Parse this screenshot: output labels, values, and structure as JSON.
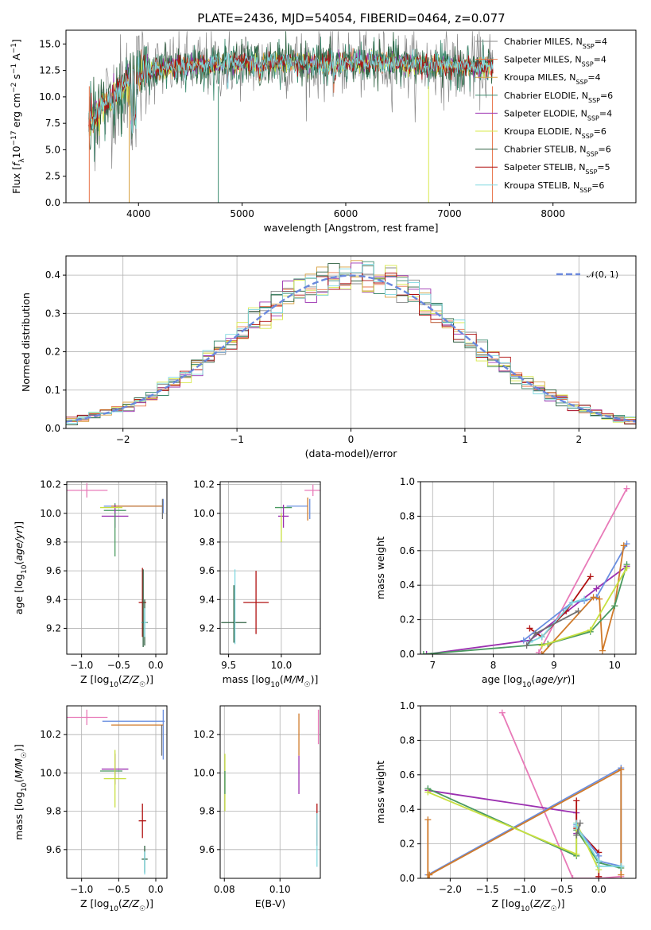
{
  "figure": {
    "title": "PLATE=2436, MJD=54054, FIBERID=0464, z=0.077"
  },
  "colors": {
    "chabrier_miles": "#888888",
    "salpeter_miles": "#e8744a",
    "kroupa_miles": "#d8a040",
    "chabrier_elodie": "#3b8a6e",
    "salpeter_elodie": "#9b30b0",
    "kroupa_elodie": "#d8e84a",
    "chabrier_stelib": "#2e6040",
    "salpeter_stelib": "#b01010",
    "kroupa_stelib": "#80d8e0",
    "normal": "#6a88dd",
    "grid": "#b0b0b0",
    "pink": "#e87ab8",
    "blue": "#6a8fe0",
    "orange": "#d07a2a",
    "purple": "#9b30b0",
    "green": "#4a9a60",
    "yellowgreen": "#c8e040",
    "red": "#b01010",
    "gray": "#707070",
    "cyan": "#80d8e0"
  },
  "chart_data": [
    {
      "type": "line",
      "id": "spectrum",
      "title": "PLATE=2436, MJD=54054, FIBERID=0464, z=0.077",
      "xlabel": "wavelength [Angstrom, rest frame]",
      "ylabel": "Flux [f_λ10^-17 erg cm^-2 s^-1 A^-1]",
      "xlim": [
        3300,
        8800
      ],
      "ylim": [
        0,
        16.3
      ],
      "xticks": [
        4000,
        5000,
        6000,
        7000,
        8000
      ],
      "xticklabels": [
        "4000",
        "5000",
        "6000",
        "7000",
        "8000"
      ],
      "yticks": [
        0,
        2.5,
        5,
        7.5,
        10,
        12.5,
        15
      ],
      "yticklabels": [
        "0.0",
        "2.5",
        "5.0",
        "7.5",
        "10.0",
        "12.5",
        "15.0"
      ],
      "grid": false,
      "legend_position": "top-right",
      "series": [
        {
          "name": "Chabrier MILES, N_SSP=4",
          "label_main": "Chabrier MILES, N",
          "label_sub": "SSP",
          "label_tail": "=4",
          "color": "#888888"
        },
        {
          "name": "Salpeter MILES, N_SSP=4",
          "label_main": "Salpeter MILES, N",
          "label_sub": "SSP",
          "label_tail": "=4",
          "color": "#e8744a"
        },
        {
          "name": "Kroupa MILES, N_SSP=4",
          "label_main": "Kroupa MILES, N",
          "label_sub": "SSP",
          "label_tail": "=4",
          "color": "#d8a040"
        },
        {
          "name": "Chabrier ELODIE, N_SSP=6",
          "label_main": "Chabrier ELODIE, N",
          "label_sub": "SSP",
          "label_tail": "=6",
          "color": "#3b8a6e"
        },
        {
          "name": "Salpeter ELODIE, N_SSP=4",
          "label_main": "Salpeter ELODIE, N",
          "label_sub": "SSP",
          "label_tail": "=4",
          "color": "#9b30b0"
        },
        {
          "name": "Kroupa ELODIE, N_SSP=6",
          "label_main": "Kroupa ELODIE, N",
          "label_sub": "SSP",
          "label_tail": "=6",
          "color": "#d8e84a"
        },
        {
          "name": "Chabrier STELIB, N_SSP=6",
          "label_main": "Chabrier STELIB, N",
          "label_sub": "SSP",
          "label_tail": "=6",
          "color": "#2e6040"
        },
        {
          "name": "Salpeter STELIB, N_SSP=5",
          "label_main": "Salpeter STELIB, N",
          "label_sub": "SSP",
          "label_tail": "=5",
          "color": "#b01010"
        },
        {
          "name": "Kroupa STELIB, N_SSP=6",
          "label_main": "Kroupa STELIB, N",
          "label_sub": "SSP",
          "label_tail": "=6",
          "color": "#80d8e0"
        }
      ],
      "continuum": {
        "x": [
          3520,
          3600,
          3700,
          3800,
          3900,
          4000,
          4100,
          4300,
          4500,
          4700,
          4900,
          5200,
          5500,
          5800,
          6100,
          6400,
          6700,
          7000,
          7200,
          7400
        ],
        "y": [
          7.5,
          8.5,
          9.5,
          10.5,
          11.3,
          12.0,
          12.5,
          12.8,
          13.0,
          13.0,
          13.2,
          13.3,
          13.3,
          13.2,
          13.2,
          13.2,
          13.0,
          12.9,
          12.8,
          12.8
        ]
      }
    },
    {
      "type": "histogram",
      "id": "residuals",
      "xlabel": "(data-model)/error",
      "ylabel": "Normed distribution",
      "xlim": [
        -2.5,
        2.5
      ],
      "ylim": [
        0,
        0.45
      ],
      "xticks": [
        -2,
        -1,
        0,
        1,
        2
      ],
      "xticklabels": [
        "−2",
        "−1",
        "0",
        "1",
        "2"
      ],
      "yticks": [
        0,
        0.1,
        0.2,
        0.3,
        0.4
      ],
      "yticklabels": [
        "0.0",
        "0.1",
        "0.2",
        "0.3",
        "0.4"
      ],
      "grid": true,
      "legend_position": "top-right",
      "legend_label": "𝒩(0, 1)",
      "bin_width": 0.1,
      "bin_start": -2.5,
      "reference_curve": {
        "name": "N(0,1)",
        "type": "normal",
        "mean": 0,
        "sigma": 1
      },
      "series_colors": [
        "#888888",
        "#e8744a",
        "#d8a040",
        "#3b8a6e",
        "#9b30b0",
        "#d8e84a",
        "#2e6040",
        "#b01010",
        "#80d8e0"
      ]
    },
    {
      "type": "errorbar",
      "id": "age_vs_Z",
      "xlabel": "Z [log10(Z/Z☉)]",
      "ylabel": "age  [log10(age/yr)]",
      "xlim": [
        -1.2,
        0.15
      ],
      "ylim": [
        9.02,
        10.22
      ],
      "xticks": [
        -1.0,
        -0.5,
        0.0
      ],
      "xticklabels": [
        "−1.0",
        "−0.5",
        "0.0"
      ],
      "yticks": [
        9.2,
        9.4,
        9.6,
        9.8,
        10.0,
        10.2
      ],
      "yticklabels": [
        "9.2",
        "9.4",
        "9.6",
        "9.8",
        "10.0",
        "10.2"
      ],
      "grid": true,
      "points": [
        {
          "x": -0.93,
          "y": 10.16,
          "xerr": 0.28,
          "yerr": 0.05,
          "color": "#e87ab8"
        },
        {
          "x": -0.3,
          "y": 10.05,
          "xerr": 0.4,
          "yerr": 0.0,
          "color": "#6a8fe0"
        },
        {
          "x": 0.1,
          "y": 10.05,
          "xerr": 0.0,
          "yerr": 0.05,
          "color": "#6a8fe0"
        },
        {
          "x": -0.25,
          "y": 10.05,
          "xerr": 0.35,
          "yerr": 0.0,
          "color": "#d07a2a"
        },
        {
          "x": 0.09,
          "y": 10.03,
          "xerr": 0.0,
          "yerr": 0.07,
          "color": "#707070"
        },
        {
          "x": -0.55,
          "y": 10.02,
          "xerr": 0.15,
          "yerr": 0.05,
          "color": "#4a9a60"
        },
        {
          "x": -0.55,
          "y": 9.98,
          "xerr": 0.18,
          "yerr": 0.08,
          "color": "#9b30b0"
        },
        {
          "x": -0.6,
          "y": 10.04,
          "xerr": 0.15,
          "yerr": 0.0,
          "color": "#c8e040"
        },
        {
          "x": -0.55,
          "y": 9.85,
          "xerr": 0.0,
          "yerr": 0.15,
          "color": "#4a9a60"
        },
        {
          "x": -0.18,
          "y": 9.38,
          "xerr": 0.05,
          "yerr": 0.24,
          "color": "#b01010"
        },
        {
          "x": -0.15,
          "y": 9.24,
          "xerr": 0.04,
          "yerr": 0.16,
          "color": "#2e6040"
        },
        {
          "x": -0.15,
          "y": 9.24,
          "xerr": 0.03,
          "yerr": 0.1,
          "color": "#80d8e0"
        },
        {
          "x": -0.17,
          "y": 9.34,
          "xerr": 0.0,
          "yerr": 0.27,
          "color": "#2e6040"
        }
      ]
    },
    {
      "type": "errorbar",
      "id": "age_vs_mass",
      "xlabel": "mass [log10(M/M☉)]",
      "ylabel": "",
      "xlim": [
        9.42,
        10.37
      ],
      "ylim": [
        9.02,
        10.22
      ],
      "xticks": [
        9.5,
        10.0
      ],
      "xticklabels": [
        "9.5",
        "10.0"
      ],
      "yticks": [
        9.2,
        9.4,
        9.6,
        9.8,
        10.0,
        10.2
      ],
      "yticklabels": [
        "9.2",
        "9.4",
        "9.6",
        "9.8",
        "10.0",
        "10.2"
      ],
      "grid": true,
      "points": [
        {
          "x": 10.3,
          "y": 10.16,
          "xerr": 0.08,
          "yerr": 0.04,
          "color": "#e87ab8"
        },
        {
          "x": 10.15,
          "y": 10.05,
          "xerr": 0.1,
          "yerr": 0.0,
          "color": "#6a8fe0"
        },
        {
          "x": 10.27,
          "y": 10.03,
          "xerr": 0.0,
          "yerr": 0.07,
          "color": "#6a8fe0"
        },
        {
          "x": 10.25,
          "y": 10.03,
          "xerr": 0.0,
          "yerr": 0.08,
          "color": "#d07a2a"
        },
        {
          "x": 10.02,
          "y": 10.04,
          "xerr": 0.08,
          "yerr": 0.0,
          "color": "#4a9a60"
        },
        {
          "x": 10.02,
          "y": 9.98,
          "xerr": 0.05,
          "yerr": 0.08,
          "color": "#9b30b0"
        },
        {
          "x": 10.0,
          "y": 9.9,
          "xerr": 0.0,
          "yerr": 0.1,
          "color": "#c8e040"
        },
        {
          "x": 9.76,
          "y": 9.38,
          "xerr": 0.12,
          "yerr": 0.22,
          "color": "#b01010"
        },
        {
          "x": 9.55,
          "y": 9.24,
          "xerr": 0.12,
          "yerr": 0.0,
          "color": "#2e6040"
        },
        {
          "x": 9.56,
          "y": 9.35,
          "xerr": 0.0,
          "yerr": 0.26,
          "color": "#80d8e0"
        },
        {
          "x": 9.55,
          "y": 9.3,
          "xerr": 0.0,
          "yerr": 0.2,
          "color": "#2e6040"
        }
      ]
    },
    {
      "type": "line",
      "id": "massweight_vs_age",
      "xlabel": "age  [log10(age/yr)]",
      "ylabel": "mass weight",
      "xlim": [
        6.8,
        10.35
      ],
      "ylim": [
        0,
        1.0
      ],
      "xticks": [
        7,
        8,
        9,
        10
      ],
      "xticklabels": [
        "7",
        "8",
        "9",
        "10"
      ],
      "yticks": [
        0,
        0.2,
        0.4,
        0.6,
        0.8,
        1.0
      ],
      "yticklabels": [
        "0.0",
        "0.2",
        "0.4",
        "0.6",
        "0.8",
        "1.0"
      ],
      "grid": true,
      "series": [
        {
          "color": "#e87ab8",
          "x": [
            8.75,
            10.2
          ],
          "y": [
            0.01,
            0.96
          ]
        },
        {
          "color": "#9b30b0",
          "x": [
            6.9,
            8.6,
            9.7,
            10.2
          ],
          "y": [
            0.0,
            0.08,
            0.38,
            0.51
          ]
        },
        {
          "color": "#b01010",
          "x": [
            8.6,
            8.8,
            9.2,
            9.6
          ],
          "y": [
            0.15,
            0.1,
            0.25,
            0.45
          ]
        },
        {
          "color": "#6a8fe0",
          "x": [
            8.5,
            9.3,
            9.5,
            9.7,
            10.2
          ],
          "y": [
            0.08,
            0.3,
            0.31,
            0.33,
            0.64
          ]
        },
        {
          "color": "#d07a2a",
          "x": [
            8.8,
            9.65,
            9.75,
            9.8,
            10.0,
            10.15
          ],
          "y": [
            0.0,
            0.33,
            0.32,
            0.02,
            0.28,
            0.63
          ]
        },
        {
          "color": "#4a9a60",
          "x": [
            6.85,
            8.9,
            9.6,
            10.0,
            10.2
          ],
          "y": [
            0.0,
            0.06,
            0.13,
            0.28,
            0.52
          ]
        },
        {
          "color": "#c8e040",
          "x": [
            8.8,
            9.6,
            10.2
          ],
          "y": [
            0.05,
            0.14,
            0.5
          ]
        },
        {
          "color": "#80d8e0",
          "x": [
            8.6,
            8.8,
            9.3,
            9.5
          ],
          "y": [
            0.07,
            0.1,
            0.3,
            0.32
          ]
        },
        {
          "color": "#707070",
          "x": [
            8.55,
            8.7,
            9.4
          ],
          "y": [
            0.05,
            0.12,
            0.25
          ]
        }
      ]
    },
    {
      "type": "errorbar",
      "id": "mass_vs_Z",
      "xlabel": "Z [log10(Z/Z☉)]",
      "ylabel": "mass [log10(M/M☉)]",
      "xlim": [
        -1.2,
        0.15
      ],
      "ylim": [
        9.45,
        10.35
      ],
      "xticks": [
        -1.0,
        -0.5,
        0.0
      ],
      "xticklabels": [
        "−1.0",
        "−0.5",
        "0.0"
      ],
      "yticks": [
        9.6,
        9.8,
        10.0,
        10.2
      ],
      "yticklabels": [
        "9.6",
        "9.8",
        "10.0",
        "10.2"
      ],
      "grid": true,
      "points": [
        {
          "x": -0.93,
          "y": 10.29,
          "xerr": 0.28,
          "yerr": 0.04,
          "color": "#e87ab8"
        },
        {
          "x": -0.3,
          "y": 10.27,
          "xerr": 0.42,
          "yerr": 0.0,
          "color": "#6a8fe0"
        },
        {
          "x": 0.1,
          "y": 10.2,
          "xerr": 0.0,
          "yerr": 0.13,
          "color": "#6a8fe0"
        },
        {
          "x": -0.25,
          "y": 10.25,
          "xerr": 0.35,
          "yerr": 0.0,
          "color": "#d07a2a"
        },
        {
          "x": 0.08,
          "y": 10.17,
          "xerr": 0.0,
          "yerr": 0.08,
          "color": "#707070"
        },
        {
          "x": -0.55,
          "y": 10.02,
          "xerr": 0.18,
          "yerr": 0.08,
          "color": "#9b30b0"
        },
        {
          "x": -0.6,
          "y": 10.01,
          "xerr": 0.15,
          "yerr": 0.0,
          "color": "#4a9a60"
        },
        {
          "x": -0.55,
          "y": 9.97,
          "xerr": 0.15,
          "yerr": 0.15,
          "color": "#c8e040"
        },
        {
          "x": -0.18,
          "y": 9.75,
          "xerr": 0.05,
          "yerr": 0.09,
          "color": "#b01010"
        },
        {
          "x": -0.15,
          "y": 9.55,
          "xerr": 0.04,
          "yerr": 0.07,
          "color": "#2e6040"
        },
        {
          "x": -0.15,
          "y": 9.53,
          "xerr": 0.0,
          "yerr": 0.06,
          "color": "#80d8e0"
        }
      ]
    },
    {
      "type": "errorbar",
      "id": "mass_vs_EBV",
      "xlabel": "E(B-V)",
      "ylabel": "",
      "xlim": [
        0.0785,
        0.1145
      ],
      "ylim": [
        9.45,
        10.35
      ],
      "xticks": [
        0.08,
        0.1
      ],
      "xticklabels": [
        "0.08",
        "0.10"
      ],
      "yticks": [
        9.6,
        9.8,
        10.0,
        10.2
      ],
      "yticklabels": [
        "9.6",
        "9.8",
        "10.0",
        "10.2"
      ],
      "grid": true,
      "points": [
        {
          "x": 0.1138,
          "y": 10.24,
          "xerr": 0.0,
          "yerr": 0.09,
          "color": "#e87ab8"
        },
        {
          "x": 0.1068,
          "y": 10.2,
          "xerr": 0.0,
          "yerr": 0.11,
          "color": "#d07a2a"
        },
        {
          "x": 0.1068,
          "y": 9.99,
          "xerr": 0.0,
          "yerr": 0.1,
          "color": "#9b30b0"
        },
        {
          "x": 0.0802,
          "y": 9.95,
          "xerr": 0.0,
          "yerr": 0.15,
          "color": "#c8e040"
        },
        {
          "x": 0.0802,
          "y": 9.95,
          "xerr": 0.0,
          "yerr": 0.06,
          "color": "#4a9a60"
        },
        {
          "x": 0.1133,
          "y": 9.73,
          "xerr": 0.0,
          "yerr": 0.11,
          "color": "#b01010"
        },
        {
          "x": 0.1133,
          "y": 9.65,
          "xerr": 0.0,
          "yerr": 0.14,
          "color": "#80d8e0"
        }
      ]
    },
    {
      "type": "line",
      "id": "massweight_vs_Z",
      "xlabel": "Z [log10(Z/Z☉)]",
      "ylabel": "mass weight",
      "xlim": [
        -2.4,
        0.5
      ],
      "ylim": [
        0,
        1.0
      ],
      "xticks": [
        -2.0,
        -1.5,
        -1.0,
        -0.5,
        0.0
      ],
      "xticklabels": [
        "−2.0",
        "−1.5",
        "−1.0",
        "−0.5",
        "0.0"
      ],
      "yticks": [
        0,
        0.2,
        0.4,
        0.6,
        0.8,
        1.0
      ],
      "yticklabels": [
        "0.0",
        "0.2",
        "0.4",
        "0.6",
        "0.8",
        "1.0"
      ],
      "grid": true,
      "series": [
        {
          "color": "#e87ab8",
          "x": [
            -1.3,
            -0.35,
            0.0,
            0.3
          ],
          "y": [
            0.96,
            0.0,
            0.0,
            0.01
          ]
        },
        {
          "color": "#9b30b0",
          "x": [
            -2.3,
            -0.3,
            -0.3
          ],
          "y": [
            0.51,
            0.38,
            0.26
          ]
        },
        {
          "color": "#b01010",
          "x": [
            -0.3,
            -0.3,
            0.0,
            0.0
          ],
          "y": [
            0.45,
            0.29,
            0.15,
            0.01
          ]
        },
        {
          "color": "#6a8fe0",
          "x": [
            -2.3,
            0.3,
            0.3,
            0.0,
            0.0,
            -0.3,
            -0.3
          ],
          "y": [
            0.02,
            0.64,
            0.07,
            0.1,
            0.13,
            0.3,
            0.31
          ]
        },
        {
          "color": "#d07a2a",
          "x": [
            -2.3,
            -2.3,
            -2.28,
            0.3,
            0.3
          ],
          "y": [
            0.34,
            0.0,
            0.02,
            0.63,
            0.02
          ]
        },
        {
          "color": "#4a9a60",
          "x": [
            -2.3,
            -0.3,
            -0.3,
            0.0,
            0.3
          ],
          "y": [
            0.52,
            0.13,
            0.28,
            0.09,
            0.06
          ]
        },
        {
          "color": "#c8e040",
          "x": [
            -2.3,
            -0.3,
            -0.3,
            0.0
          ],
          "y": [
            0.5,
            0.14,
            0.32,
            0.05
          ]
        },
        {
          "color": "#80d8e0",
          "x": [
            -0.3,
            -0.3,
            0.0,
            0.0,
            0.3
          ],
          "y": [
            0.32,
            0.3,
            0.1,
            0.07,
            0.07
          ]
        },
        {
          "color": "#707070",
          "x": [
            -0.3,
            -0.25
          ],
          "y": [
            0.25,
            0.32
          ]
        }
      ]
    }
  ]
}
